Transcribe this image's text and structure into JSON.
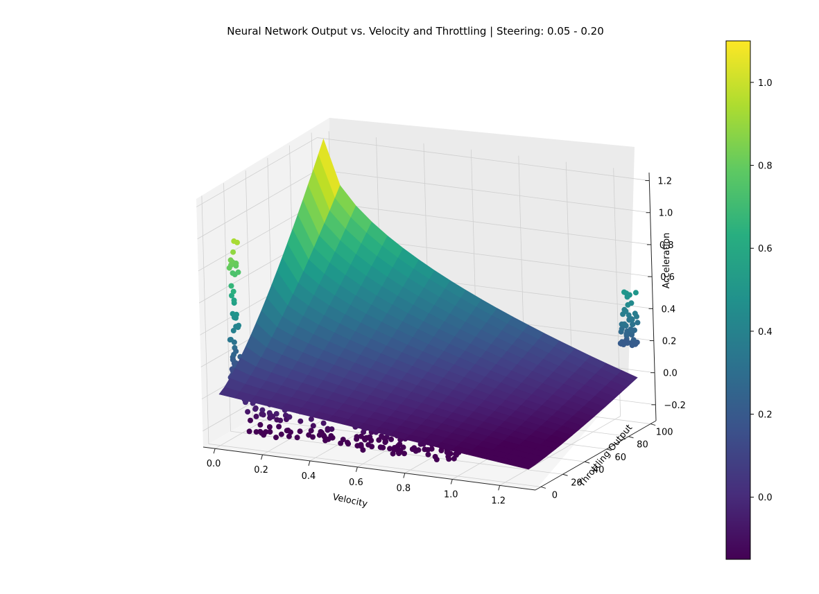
{
  "chart_data": {
    "type": "surface",
    "title": "Neural Network Output vs. Velocity and Throttling | Steering: 0.05 - 0.20",
    "x_axis": {
      "label": "Velocity",
      "ticks": [
        "0.0",
        "0.2",
        "0.4",
        "0.6",
        "0.8",
        "1.0",
        "1.2"
      ],
      "range": [
        -0.05,
        1.35
      ]
    },
    "y_axis": {
      "label": "Throttling Output",
      "ticks": [
        "0",
        "20",
        "40",
        "60",
        "80",
        "100"
      ],
      "range": [
        -5,
        105
      ]
    },
    "z_axis": {
      "label": "Acceleration",
      "ticks": [
        "−0.2",
        "0.0",
        "0.2",
        "0.4",
        "0.6",
        "0.8",
        "1.0",
        "1.2"
      ],
      "range": [
        -0.3,
        1.25
      ]
    },
    "colorbar": {
      "colormap": "viridis",
      "range": [
        -0.15,
        1.1
      ],
      "ticks": [
        "0.0",
        "0.2",
        "0.4",
        "0.6",
        "0.8",
        "1.0"
      ]
    },
    "surface": {
      "velocity_range": [
        0.0,
        1.3
      ],
      "throttle_range": [
        0,
        100
      ],
      "corner_values": {
        "v0_t0": 0.02,
        "v0_t100": 1.22,
        "v1.3_t0": -0.2,
        "v1.3_t100": -0.02
      }
    },
    "scatter_clusters": [
      {
        "description": "low velocity, low throttle",
        "velocity": 0.02,
        "throttle": 5,
        "acceleration_range": [
          0.1,
          0.95
        ]
      },
      {
        "description": "high velocity, high throttle",
        "velocity": 1.25,
        "throttle": 95,
        "acceleration_range": [
          0.2,
          0.52
        ]
      },
      {
        "description": "bottom band",
        "velocity_range": [
          0.1,
          1.0
        ],
        "throttle": 0,
        "acceleration_range": [
          -0.2,
          0.1
        ]
      }
    ],
    "grid": true
  }
}
